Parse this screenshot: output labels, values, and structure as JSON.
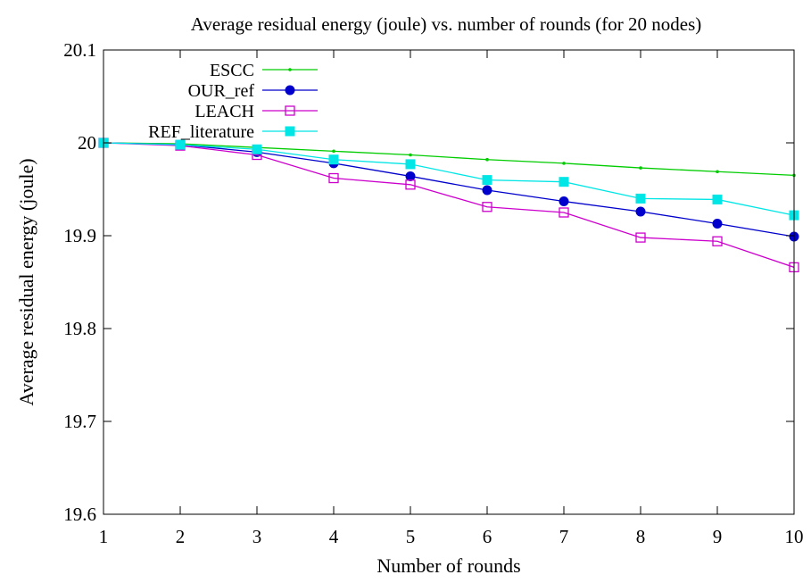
{
  "chart_data": {
    "type": "line",
    "title": "Average residual energy (joule) vs. number of rounds (for 20 nodes)",
    "xlabel": "Number of rounds",
    "ylabel": "Average residual energy (joule)",
    "xlim": [
      1,
      10
    ],
    "ylim": [
      19.6,
      20.1
    ],
    "xticks": [
      "1",
      "2",
      "3",
      "4",
      "5",
      "6",
      "7",
      "8",
      "9",
      "10"
    ],
    "yticks": [
      "19.6",
      "19.7",
      "19.8",
      "19.9",
      "20",
      "20.1"
    ],
    "grid": false,
    "legend_position": "top-left",
    "x": [
      1,
      2,
      3,
      4,
      5,
      6,
      7,
      8,
      9,
      10
    ],
    "series": [
      {
        "name": "ESCC",
        "color": "#00cc00",
        "marker": "dot",
        "values": [
          20.0,
          19.999,
          19.995,
          19.991,
          19.987,
          19.982,
          19.978,
          19.973,
          19.969,
          19.965
        ]
      },
      {
        "name": "OUR_ref",
        "color": "#0000cc",
        "marker": "filled-circle",
        "values": [
          20.0,
          19.998,
          19.99,
          19.978,
          19.964,
          19.949,
          19.937,
          19.926,
          19.913,
          19.899
        ]
      },
      {
        "name": "LEACH",
        "color": "#cc00cc",
        "marker": "open-square",
        "values": [
          20.0,
          19.997,
          19.987,
          19.962,
          19.955,
          19.931,
          19.925,
          19.898,
          19.894,
          19.866
        ]
      },
      {
        "name": "REF_literature",
        "color": "#00e5e5",
        "marker": "filled-square",
        "values": [
          20.0,
          19.998,
          19.993,
          19.982,
          19.977,
          19.96,
          19.958,
          19.94,
          19.939,
          19.922
        ]
      }
    ]
  }
}
